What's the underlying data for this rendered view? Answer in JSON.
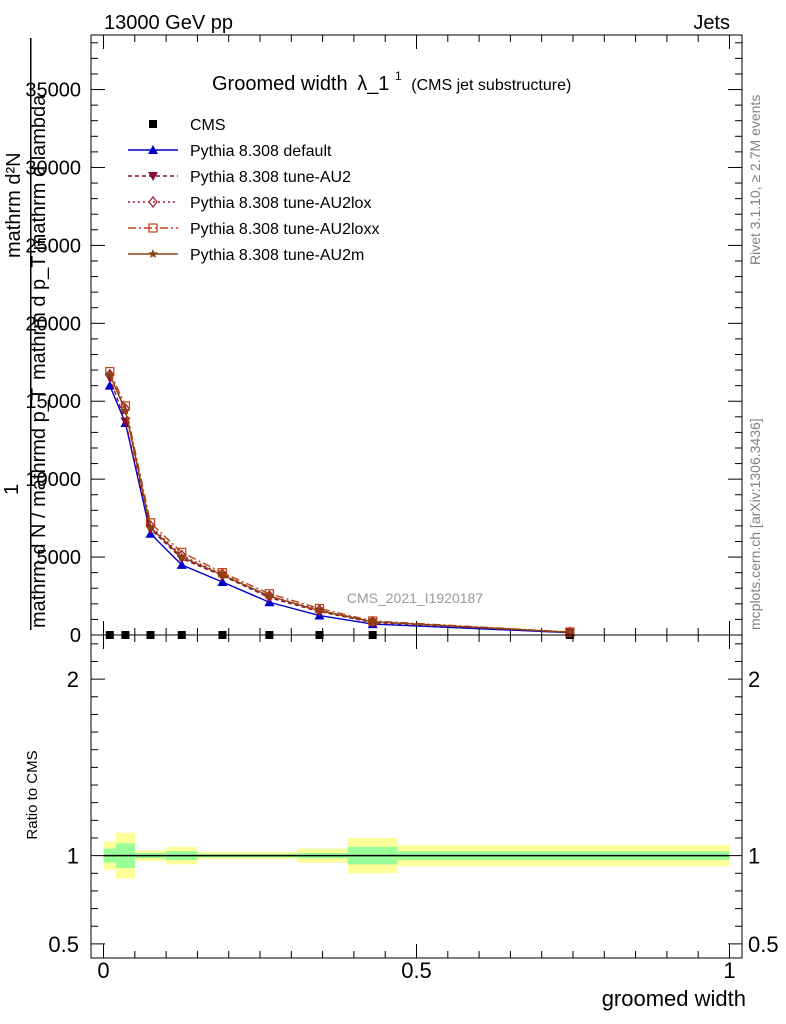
{
  "header": {
    "left": "13000 GeV pp",
    "right": "Jets"
  },
  "side": {
    "rivet": "Rivet 3.1.10, ≥ 2.7M events",
    "mcplots": "mcplots.cern.ch [arXiv:1306.3436]"
  },
  "watermark": "CMS_2021_I1920187",
  "colors": {
    "cms": "#000000",
    "default": "#0000cc",
    "au2": "#8b0a3a",
    "au2lox": "#a0182a",
    "au2loxx": "#c04010",
    "au2m": "#8b4513",
    "band_yellow": "#ffff99",
    "band_green": "#99ff99"
  },
  "chart_data": [
    {
      "type": "line",
      "title": "Groomed width",
      "title_math": "λ_1",
      "title_sup": "1",
      "title_note": "(CMS jet substructure)",
      "ylabel_lines": [
        "mathrm d²N",
        "mathrm d p_T mathrm d lambda",
        "1",
        "mathrm d N / mathrmd p_T"
      ],
      "xlim": [
        -0.02,
        1.02
      ],
      "ylim": [
        0,
        38500
      ],
      "yticks": [
        0,
        5000,
        10000,
        15000,
        20000,
        25000,
        30000,
        35000
      ],
      "ytick_labels": [
        "0",
        "5000",
        "10000",
        "15000",
        "20000",
        "25000",
        "30000",
        "35000"
      ],
      "x": [
        0.01,
        0.035,
        0.075,
        0.125,
        0.19,
        0.265,
        0.345,
        0.43,
        0.745
      ],
      "series": [
        {
          "name": "CMS",
          "key": "cms",
          "marker": "square",
          "values": [
            0,
            0,
            0,
            0,
            0,
            0,
            0,
            0,
            0
          ]
        },
        {
          "name": "Pythia 8.308 default",
          "key": "default",
          "marker": "triangle-up",
          "dash": "",
          "values": [
            16000,
            13600,
            6500,
            4500,
            3400,
            2100,
            1250,
            700,
            150
          ]
        },
        {
          "name": "Pythia 8.308 tune-AU2",
          "key": "au2",
          "marker": "triangle-down",
          "dash": "4,3",
          "values": [
            16500,
            13700,
            6800,
            4900,
            3800,
            2400,
            1500,
            800,
            170
          ]
        },
        {
          "name": "Pythia 8.308 tune-AU2lox",
          "key": "au2lox",
          "marker": "diamond",
          "dash": "2,3",
          "values": [
            16700,
            14500,
            7000,
            5100,
            3900,
            2500,
            1600,
            850,
            180
          ]
        },
        {
          "name": "Pythia 8.308 tune-AU2loxx",
          "key": "au2loxx",
          "marker": "square-open",
          "dash": "8,3,2,3",
          "values": [
            16900,
            14700,
            7200,
            5300,
            4000,
            2650,
            1700,
            900,
            190
          ]
        },
        {
          "name": "Pythia 8.308 tune-AU2m",
          "key": "au2m",
          "marker": "star",
          "dash": "",
          "values": [
            16700,
            14400,
            6900,
            5000,
            3850,
            2500,
            1550,
            850,
            175
          ]
        }
      ]
    },
    {
      "type": "area",
      "ylabel": "Ratio to CMS",
      "xlabel": "groomed width",
      "xlim": [
        -0.02,
        1.02
      ],
      "ylim": [
        0.42,
        2.25
      ],
      "xticks": [
        0,
        0.5,
        1
      ],
      "xtick_labels": [
        "0",
        "0.5",
        "1"
      ],
      "yticks": [
        0.5,
        1,
        2
      ],
      "ytick_labels": [
        "0.5",
        "1",
        "2"
      ],
      "bands": [
        {
          "x0": 0.0,
          "x1": 0.02,
          "y_lo": 0.92,
          "y_hi": 1.08,
          "g_lo": 0.96,
          "g_hi": 1.04
        },
        {
          "x0": 0.02,
          "x1": 0.05,
          "y_lo": 0.87,
          "y_hi": 1.13,
          "g_lo": 0.93,
          "g_hi": 1.07
        },
        {
          "x0": 0.05,
          "x1": 0.1,
          "y_lo": 0.97,
          "y_hi": 1.03,
          "g_lo": 0.985,
          "g_hi": 1.015
        },
        {
          "x0": 0.1,
          "x1": 0.15,
          "y_lo": 0.95,
          "y_hi": 1.05,
          "g_lo": 0.975,
          "g_hi": 1.025
        },
        {
          "x0": 0.15,
          "x1": 0.23,
          "y_lo": 0.98,
          "y_hi": 1.02,
          "g_lo": 0.99,
          "g_hi": 1.01
        },
        {
          "x0": 0.23,
          "x1": 0.31,
          "y_lo": 0.98,
          "y_hi": 1.02,
          "g_lo": 0.99,
          "g_hi": 1.01
        },
        {
          "x0": 0.31,
          "x1": 0.39,
          "y_lo": 0.96,
          "y_hi": 1.04,
          "g_lo": 0.985,
          "g_hi": 1.015
        },
        {
          "x0": 0.39,
          "x1": 0.47,
          "y_lo": 0.9,
          "y_hi": 1.1,
          "g_lo": 0.95,
          "g_hi": 1.05
        },
        {
          "x0": 0.47,
          "x1": 1.0,
          "y_lo": 0.94,
          "y_hi": 1.06,
          "g_lo": 0.975,
          "g_hi": 1.025
        }
      ],
      "reference": 1
    }
  ]
}
